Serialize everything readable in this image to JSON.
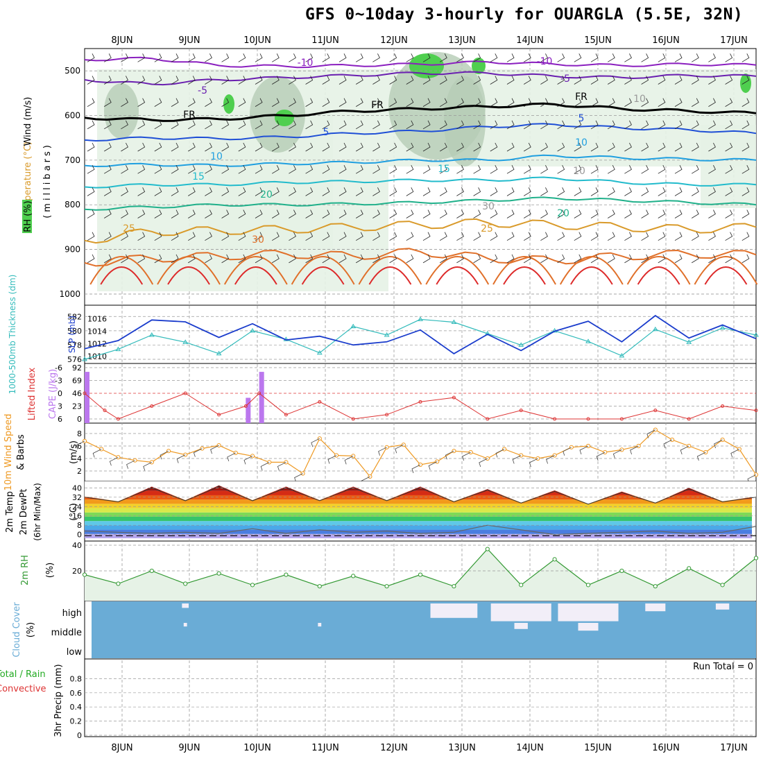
{
  "title": "GFS 0~10day 3-hourly for OUARGLA (5.5E, 32N)",
  "dates": [
    "8JUN",
    "9JUN",
    "10JUN",
    "11JUN",
    "12JUN",
    "13JUN",
    "14JUN",
    "15JUN",
    "16JUN",
    "17JUN"
  ],
  "colors": {
    "grid": "#999999",
    "rh_light": "#e6f2e6",
    "rh_mid": "#b5ccb5",
    "rh_dark": "#4fcf4f",
    "temp_neg10": "#8a1fbf",
    "temp_neg5": "#6a1fb0",
    "temp_fr": "#000000",
    "temp_5": "#1f4fd6",
    "temp_10": "#1f9fe0",
    "temp_15": "#22bbcc",
    "temp_20": "#1fb08a",
    "temp_25": "#d99a2a",
    "temp_30": "#e0702a",
    "temp_35": "#dd2a2a",
    "thickness": "#33bbbb",
    "slp": "#1a3ccc",
    "lifted": "#dd3333",
    "cape": "#bb77ee",
    "wind10": "#ee9922",
    "rh2m": "#339933",
    "cloud_bg": "#6aacd6",
    "precip_label": "#22aa22"
  },
  "upper_panel": {
    "labels": [
      "Wind (m/s)",
      "Temperature (°C)",
      "RH (%)",
      "(millibars)"
    ],
    "ylevels": [
      500,
      600,
      700,
      800,
      900,
      1000
    ],
    "contour_labels": [
      {
        "text": "-10",
        "color": "temp_neg10"
      },
      {
        "text": "-10",
        "color": "temp_neg10"
      },
      {
        "text": "-5",
        "color": "temp_neg5"
      },
      {
        "text": "-5",
        "color": "temp_neg5"
      },
      {
        "text": "FR",
        "color": "temp_fr"
      },
      {
        "text": "FR",
        "color": "temp_fr"
      },
      {
        "text": "FR",
        "color": "temp_fr"
      },
      {
        "text": "5",
        "color": "temp_5"
      },
      {
        "text": "5",
        "color": "temp_5"
      },
      {
        "text": "10",
        "color": "temp_10"
      },
      {
        "text": "10",
        "color": "temp_10"
      },
      {
        "text": "15",
        "color": "temp_15"
      },
      {
        "text": "15",
        "color": "temp_15"
      },
      {
        "text": "20",
        "color": "temp_20"
      },
      {
        "text": "20",
        "color": "temp_20"
      },
      {
        "text": "25",
        "color": "temp_25"
      },
      {
        "text": "25",
        "color": "temp_25"
      },
      {
        "text": "30",
        "color": "temp_30"
      },
      {
        "text": "30",
        "color": "grid"
      },
      {
        "text": "10",
        "color": "grid"
      },
      {
        "text": "10",
        "color": "grid"
      }
    ]
  },
  "chart_data": [
    {
      "type": "line",
      "name": "temperature_isotherms",
      "x": [
        0,
        1,
        2,
        3,
        4,
        5,
        6,
        7,
        8,
        9,
        10
      ],
      "series": [
        {
          "name": "-10",
          "pressure": [
            475,
            472,
            488,
            490,
            488,
            485,
            480,
            485,
            488,
            485,
            487
          ]
        },
        {
          "name": "-5",
          "pressure": [
            520,
            530,
            520,
            515,
            510,
            505,
            505,
            512,
            515,
            510,
            512
          ]
        },
        {
          "name": "FR",
          "pressure": [
            605,
            610,
            608,
            600,
            590,
            585,
            580,
            575,
            585,
            590,
            595
          ]
        },
        {
          "name": "5",
          "pressure": [
            655,
            650,
            652,
            648,
            640,
            635,
            625,
            620,
            628,
            632,
            640
          ]
        },
        {
          "name": "10",
          "pressure": [
            712,
            710,
            712,
            708,
            705,
            700,
            700,
            690,
            695,
            698,
            700
          ]
        },
        {
          "name": "15",
          "pressure": [
            760,
            755,
            755,
            750,
            748,
            745,
            745,
            740,
            750,
            755,
            755
          ]
        },
        {
          "name": "20",
          "pressure": [
            810,
            805,
            800,
            800,
            798,
            795,
            790,
            785,
            790,
            795,
            800
          ]
        },
        {
          "name": "25",
          "pressure": [
            880,
            860,
            858,
            855,
            850,
            845,
            840,
            845,
            850,
            855,
            850
          ]
        },
        {
          "name": "30",
          "pressure": [
            930,
            920,
            915,
            910,
            915,
            905,
            920,
            925,
            915,
            910,
            912
          ]
        }
      ],
      "title": "Temperature (°C)",
      "ylabel": "(millibars)",
      "ylim": [
        450,
        1000
      ]
    },
    {
      "type": "line",
      "name": "thickness_slp",
      "x": [
        0,
        0.5,
        1,
        1.5,
        2,
        2.5,
        3,
        3.5,
        4,
        4.5,
        5,
        5.5,
        6,
        6.5,
        7,
        7.5,
        8,
        8.5,
        9,
        9.5,
        10
      ],
      "series": [
        {
          "name": "Thickness 1000-500mb (dm)",
          "values": [
            576.0,
            577.4,
            579.4,
            578.4,
            576.8,
            580.0,
            578.8,
            576.9,
            580.6,
            579.4,
            581.6,
            581.2,
            579.6,
            578.0,
            580.0,
            578.5,
            576.5,
            580.2,
            578.4,
            580.4,
            579.4
          ]
        },
        {
          "name": "SLP (mb)",
          "values": [
            1011.2,
            1012.5,
            1015.8,
            1015.5,
            1013.0,
            1015.2,
            1012.6,
            1013.2,
            1011.8,
            1012.3,
            1014.2,
            1010.4,
            1013.5,
            1010.9,
            1014.0,
            1015.6,
            1012.3,
            1016.5,
            1012.9,
            1015.0,
            1012.8
          ]
        }
      ],
      "y1label": "Thickness (dm)",
      "y1lim": [
        576,
        583
      ],
      "y2label": "SLP (mb)",
      "y2lim": [
        1009.5,
        1017.5
      ]
    },
    {
      "type": "bar",
      "name": "cape_lifted",
      "x": [
        0,
        0.3,
        0.5,
        1,
        1.5,
        2,
        2.4,
        2.6,
        3,
        3.5,
        4,
        4.5,
        5,
        5.5,
        6,
        6.5,
        7,
        7.5,
        8,
        8.5,
        9,
        9.5,
        10
      ],
      "series": [
        {
          "name": "Lifted Index",
          "values": [
            0,
            4,
            6,
            3,
            0,
            5,
            3,
            0,
            5,
            2,
            6,
            5,
            2,
            1,
            6,
            4,
            6,
            6,
            6,
            4,
            6,
            3,
            4
          ]
        },
        {
          "name": "CAPE (J/kg)",
          "values": [
            85,
            0,
            0,
            0,
            0,
            0,
            42,
            85,
            0,
            0,
            0,
            0,
            0,
            0,
            0,
            0,
            0,
            0,
            0,
            0,
            0,
            0,
            0
          ]
        }
      ],
      "y1label": "Lifted Index",
      "y1ticks": [
        -6,
        -3,
        0,
        3,
        6
      ],
      "y2label": "CAPE (J/kg)",
      "y2ticks": [
        0,
        23,
        46,
        69,
        92
      ]
    },
    {
      "type": "line",
      "name": "wind10m",
      "x": [
        0,
        0.25,
        0.5,
        0.75,
        1,
        1.25,
        1.5,
        1.75,
        2,
        2.25,
        2.5,
        2.75,
        3,
        3.25,
        3.5,
        3.75,
        4,
        4.25,
        4.5,
        4.75,
        5,
        5.25,
        5.5,
        5.75,
        6,
        6.25,
        6.5,
        6.75,
        7,
        7.25,
        7.5,
        7.75,
        8,
        8.25,
        8.5,
        8.75,
        9,
        9.25,
        9.5,
        9.75,
        10
      ],
      "series": [
        {
          "name": "10m Wind Speed (m/s)",
          "values": [
            6.8,
            5.5,
            4.2,
            3.7,
            3.4,
            5.2,
            4.6,
            5.6,
            6.1,
            4.9,
            4.4,
            3.4,
            3.4,
            1.6,
            7.2,
            4.5,
            4.4,
            1.1,
            5.8,
            6.2,
            3.0,
            3.5,
            5.2,
            5.0,
            4.0,
            5.5,
            4.5,
            4.0,
            4.5,
            5.8,
            6.0,
            5.0,
            5.4,
            6.0,
            8.6,
            7.0,
            6.0,
            5.0,
            7.0,
            5.5,
            1.4
          ]
        }
      ],
      "ylabel": "(m/s)",
      "ylim": [
        1,
        9
      ],
      "yticks": [
        2,
        4,
        6,
        8
      ]
    },
    {
      "type": "area",
      "name": "temp2m",
      "x": [
        0,
        0.5,
        1,
        1.5,
        2,
        2.5,
        3,
        3.5,
        4,
        4.5,
        5,
        5.5,
        6,
        6.5,
        7,
        7.5,
        8,
        8.5,
        9,
        9.5,
        10
      ],
      "series": [
        {
          "name": "2m Temp",
          "values": [
            32,
            28,
            40,
            29,
            41,
            29,
            40,
            29,
            40,
            29,
            40,
            28,
            38,
            27,
            37,
            26,
            36,
            27,
            39,
            28,
            32
          ]
        },
        {
          "name": "2m DewPt",
          "values": [
            3,
            2,
            1,
            2,
            1,
            5,
            1,
            4,
            2,
            3,
            1,
            2,
            8,
            4,
            0,
            1,
            2,
            3,
            1,
            2,
            7
          ]
        }
      ],
      "ylabel": "(°C)",
      "ylim": [
        -2,
        42
      ],
      "yticks": [
        0,
        8,
        16,
        24,
        32,
        40
      ]
    },
    {
      "type": "area",
      "name": "rh2m",
      "x": [
        0,
        0.5,
        1,
        1.5,
        2,
        2.5,
        3,
        3.5,
        4,
        4.5,
        5,
        5.5,
        6,
        6.5,
        7,
        7.5,
        8,
        8.5,
        9,
        9.5,
        10
      ],
      "series": [
        {
          "name": "2m RH (%)",
          "values": [
            17,
            10,
            20,
            10,
            18,
            9,
            17,
            8,
            16,
            8,
            17,
            8,
            37,
            9,
            29,
            9,
            20,
            8,
            22,
            9,
            30
          ]
        }
      ],
      "ylabel": "(%)",
      "ylim": [
        0,
        40
      ],
      "yticks": [
        20,
        40
      ]
    },
    {
      "type": "heatmap",
      "name": "cloud_cover",
      "x": [
        0,
        1,
        2,
        3,
        4,
        5,
        6,
        7,
        8,
        9,
        10
      ],
      "series": [
        {
          "name": "high",
          "values": [
            0,
            10,
            0,
            0,
            0,
            70,
            90,
            90,
            30,
            20,
            30
          ]
        },
        {
          "name": "middle",
          "values": [
            0,
            5,
            0,
            5,
            0,
            0,
            20,
            30,
            0,
            0,
            0
          ]
        },
        {
          "name": "low",
          "values": [
            0,
            0,
            0,
            0,
            0,
            0,
            0,
            0,
            0,
            0,
            0
          ]
        }
      ],
      "ylabel": "(%)"
    },
    {
      "type": "bar",
      "name": "precip",
      "x": [
        0,
        1,
        2,
        3,
        4,
        5,
        6,
        7,
        8,
        9,
        10
      ],
      "series": [
        {
          "name": "3hr Precip (mm)",
          "values": [
            0,
            0,
            0,
            0,
            0,
            0,
            0,
            0,
            0,
            0,
            0
          ]
        }
      ],
      "ylabel": "3hr Precip (mm)",
      "ylim": [
        0,
        1
      ],
      "yticks": [
        0,
        0.2,
        0.4,
        0.6,
        0.8
      ],
      "run_total": "Run Total = 0"
    }
  ],
  "panel_labels": {
    "thickness": "1000-500mb Thickness (dm)",
    "slp": "SLP (mb)",
    "lifted": "Lifted Index",
    "cape": "CAPE (J/kg)",
    "wind10": "10m Wind Speed",
    "barbs": "& Barbs",
    "wind_unit": "(m/s)",
    "temp2m": "2m Temp",
    "dewpt": "2m DewPt",
    "minmax": "(6hr Min/Max)",
    "temp_unit": "(°C)",
    "rh2m": "2m RH",
    "rh_unit": "(%)",
    "cloud": "Cloud Cover",
    "cloud_unit": "(%)",
    "cloud_levels": [
      "high",
      "middle",
      "low"
    ],
    "precip_total": "Total / Rain",
    "precip_conv": "Convective",
    "precip_label": "3hr Precip (mm)"
  },
  "tick_values": {
    "thickness": [
      "576",
      "578",
      "580",
      "582"
    ],
    "slp": [
      "1010",
      "1012",
      "1014",
      "1016"
    ],
    "lifted": [
      "-6",
      "-3",
      "0",
      "3",
      "6"
    ],
    "cape": [
      "0",
      "23",
      "46",
      "69",
      "92"
    ],
    "wind": [
      "2",
      "4",
      "6",
      "8"
    ],
    "temp": [
      "0",
      "8",
      "16",
      "24",
      "32",
      "40"
    ],
    "rh": [
      "20",
      "40"
    ],
    "precip": [
      "0",
      "0.2",
      "0.4",
      "0.6",
      "0.8"
    ]
  }
}
